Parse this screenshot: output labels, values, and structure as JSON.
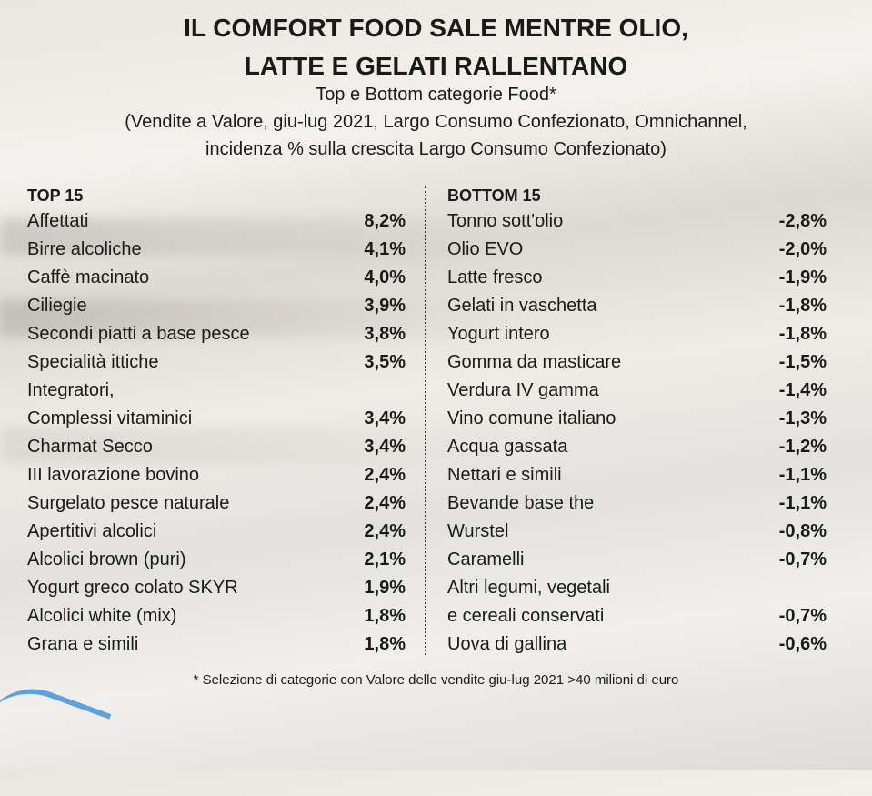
{
  "title": [
    "IL COMFORT FOOD SALE MENTRE OLIO,",
    "LATTE E GELATI RALLENTANO"
  ],
  "subtitle": [
    "Top e Bottom categorie Food*",
    "(Vendite a Valore, giu-lug 2021, Largo Consumo Confezionato, Omnichannel,",
    "incidenza % sulla crescita Largo Consumo Confezionato)"
  ],
  "footnote": "* Selezione di categorie con Valore delle vendite giu-lug 2021 >40 milioni di euro",
  "chart_data": {
    "type": "table",
    "tables": [
      {
        "header": "TOP 15",
        "rows": [
          {
            "name": "Affettati",
            "value": "8,2%"
          },
          {
            "name": "Birre alcoliche",
            "value": "4,1%"
          },
          {
            "name": "Caffè macinato",
            "value": "4,0%"
          },
          {
            "name": "Ciliegie",
            "value": "3,9%"
          },
          {
            "name": "Secondi piatti a base pesce",
            "value": "3,8%"
          },
          {
            "name": "Specialità ittiche",
            "value": "3,5%"
          },
          {
            "name": "Integratori,\nComplessi vitaminici",
            "value": "3,4%"
          },
          {
            "name": "Charmat Secco",
            "value": "3,4%"
          },
          {
            "name": "III lavorazione bovino",
            "value": "2,4%"
          },
          {
            "name": "Surgelato pesce naturale",
            "value": "2,4%"
          },
          {
            "name": "Apertitivi alcolici",
            "value": "2,4%"
          },
          {
            "name": "Alcolici brown (puri)",
            "value": "2,1%"
          },
          {
            "name": "Yogurt greco colato SKYR",
            "value": "1,9%"
          },
          {
            "name": "Alcolici white (mix)",
            "value": "1,8%"
          },
          {
            "name": "Grana e simili",
            "value": "1,8%"
          }
        ]
      },
      {
        "header": "BOTTOM 15",
        "rows": [
          {
            "name": "Tonno sott'olio",
            "value": "-2,8%"
          },
          {
            "name": "Olio EVO",
            "value": "-2,0%"
          },
          {
            "name": "Latte fresco",
            "value": "-1,9%"
          },
          {
            "name": "Gelati in vaschetta",
            "value": "-1,8%"
          },
          {
            "name": "Yogurt intero",
            "value": "-1,8%"
          },
          {
            "name": "Gomma da masticare",
            "value": "-1,5%"
          },
          {
            "name": "Verdura IV gamma",
            "value": "-1,4%"
          },
          {
            "name": "Vino comune italiano",
            "value": "-1,3%"
          },
          {
            "name": "Acqua gassata",
            "value": "-1,2%"
          },
          {
            "name": "Nettari e simili",
            "value": "-1,1%"
          },
          {
            "name": "Bevande base the",
            "value": "-1,1%"
          },
          {
            "name": "Wurstel",
            "value": "-0,8%"
          },
          {
            "name": "Caramelli",
            "value": "-0,7%"
          },
          {
            "name": "Altri legumi, vegetali\ne cereali conservati",
            "value": "-0,7%"
          },
          {
            "name": "Uova di gallina",
            "value": "-0,6%"
          }
        ]
      }
    ]
  }
}
